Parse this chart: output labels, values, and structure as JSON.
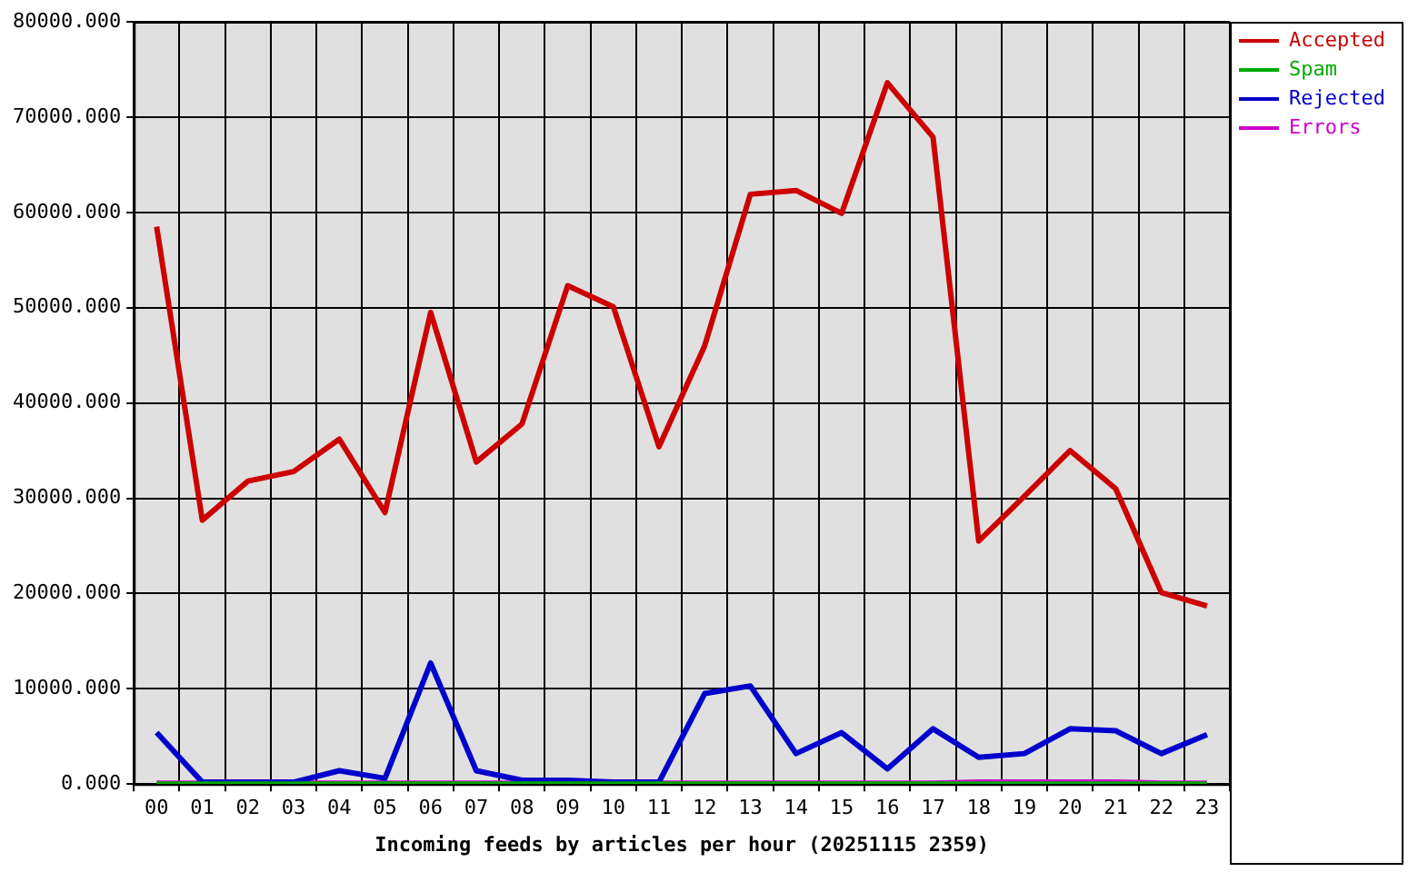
{
  "chart_data": {
    "type": "line",
    "xlabel": "Incoming feeds by articles per hour (20251115 2359)",
    "categories": [
      "00",
      "01",
      "02",
      "03",
      "04",
      "05",
      "06",
      "07",
      "08",
      "09",
      "10",
      "11",
      "12",
      "13",
      "14",
      "15",
      "16",
      "17",
      "18",
      "19",
      "20",
      "21",
      "22",
      "23"
    ],
    "series": [
      {
        "name": "Accepted",
        "color": "#cc0000",
        "values": [
          58500,
          27700,
          31800,
          32800,
          36200,
          28500,
          49500,
          33800,
          37800,
          52300,
          50100,
          35400,
          46000,
          61900,
          62300,
          59900,
          73600,
          67900,
          25500,
          30200,
          35000,
          31000,
          20100,
          18700
        ]
      },
      {
        "name": "Spam",
        "color": "#00aa00",
        "values": [
          0,
          0,
          0,
          0,
          0,
          0,
          0,
          0,
          0,
          0,
          0,
          0,
          0,
          0,
          0,
          0,
          0,
          0,
          0,
          0,
          0,
          0,
          0,
          0
        ]
      },
      {
        "name": "Rejected",
        "color": "#0000cc",
        "values": [
          5400,
          200,
          200,
          200,
          1400,
          600,
          12700,
          1400,
          400,
          400,
          200,
          200,
          9500,
          10300,
          3200,
          5400,
          1600,
          5800,
          2800,
          3200,
          5800,
          5600,
          3200,
          5200
        ]
      },
      {
        "name": "Errors",
        "color": "#cc00cc",
        "values": [
          100,
          100,
          100,
          100,
          100,
          100,
          100,
          100,
          100,
          100,
          100,
          100,
          100,
          100,
          100,
          100,
          100,
          100,
          200,
          200,
          200,
          200,
          100,
          100
        ]
      }
    ],
    "ylim": [
      0,
      80000
    ],
    "yticks": [
      {
        "value": 0,
        "label": "0.000"
      },
      {
        "value": 10000,
        "label": "10000.000"
      },
      {
        "value": 20000,
        "label": "20000.000"
      },
      {
        "value": 30000,
        "label": "30000.000"
      },
      {
        "value": 40000,
        "label": "40000.000"
      },
      {
        "value": 50000,
        "label": "50000.000"
      },
      {
        "value": 60000,
        "label": "60000.000"
      },
      {
        "value": 70000,
        "label": "70000.000"
      },
      {
        "value": 80000,
        "label": "80000.000"
      }
    ],
    "grid": true,
    "legend": "top right",
    "marker": "none",
    "line_style": "solid"
  }
}
